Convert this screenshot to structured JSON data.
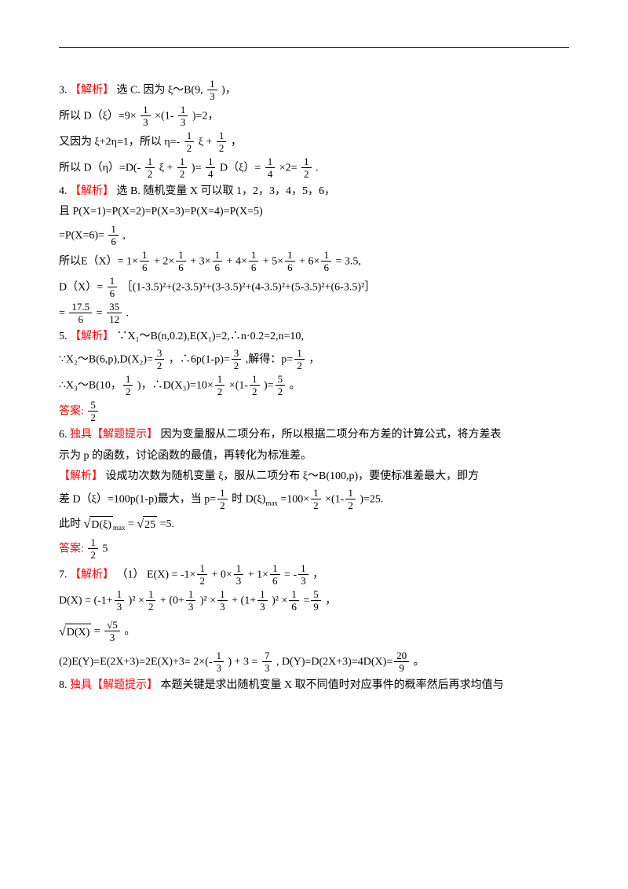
{
  "doc": {
    "text_color": "#000000",
    "accent_color": "#ff0000",
    "font_family": "SimSun",
    "font_size_pt": 10.5,
    "page_bg": "#ffffff"
  },
  "q3": {
    "prefix": "3.",
    "tag": "【解析】",
    "l1a": "选 C. 因为 ξ～B(9,",
    "l1b": ")，",
    "l2a": "所以 D（ξ）=9×",
    "l2b": "×(1-",
    "l2c": ")=2，",
    "l3a": "又因为 ξ+2η=1，所以 η=-",
    "l3b": " ξ +",
    "l3c": " ，",
    "l4a": "所以 D（η）=D(-",
    "l4b": " ξ +",
    "l4c": ")=",
    "l4d": " D（ξ）=",
    "l4e": " ×2=",
    "l4f": " ."
  },
  "q4": {
    "prefix": "4.",
    "tag": "【解析】",
    "l1": "选 B. 随机变量 X 可以取 1，2，3，4，5，6，",
    "l2": "且 P(X=1)=P(X=2)=P(X=3)=P(X=4)=P(X=5)",
    "l3a": "=P(X=6)=",
    "l3b": ",",
    "l4a": "所以E（X）= 1×",
    "l4mid": " + 2×",
    "l4mid2": " + 3×",
    "l4mid3": " + 4×",
    "l4mid4": " + 5×",
    "l4mid5": " + 6×",
    "l4end": " = 3.5,",
    "l5a": "D（X）=",
    "l5b": "［(1-3.5)²+(2-3.5)²+(3-3.5)²+(4-3.5)²+(5-3.5)²+(6-3.5)²］",
    "l6a": " = ",
    "l6b": " = ",
    "l6c": "."
  },
  "q5": {
    "prefix": "5.",
    "tag": "【解析】",
    "l1": "∵X₁～B(n,0.2),E(X₁)=2,∴n·0.2=2,n=10,",
    "l2a": "∵X₂～B(6,p),D(X₂)=",
    "l2b": "，∴6p(1-p)=",
    "l2c": ",解得：p=",
    "l2d": "，",
    "l3a": "∴X₃～B(10，",
    "l3b": ")，∴D(X₃)=10×",
    "l3c": "×(1-",
    "l3d": ")=",
    "l3e": "。",
    "ans_label": "答案: ",
    "ans_val_num": "5",
    "ans_val_den": "2"
  },
  "q6": {
    "prefix": "6.",
    "tag_hint": "独具【解题提示】",
    "hint": "因为变量服从二项分布，所以根据二项分布方差的计算公式，将方差表",
    "hint2": "示为 p 的函数，讨论函数的最值，再转化为标准差。",
    "tag_ana": "【解析】",
    "l1": "设成功次数为随机变量 ξ，服从二项分布 ξ～B(100,p)，要使标准差最大，即方",
    "l2a": "差 D（ξ）=100p(1-p)最大，当 p=",
    "l2b": "时 D(ξ)",
    "l2sub": "max",
    "l2c": "=100×",
    "l2d": "×(1-",
    "l2e": ")=25.",
    "l3a": "此时",
    "l3b": " =",
    "l3c": " =5.",
    "ans_label": "答案: ",
    "ans_a_num": "1",
    "ans_a_den": "2",
    "ans_b": "   5"
  },
  "q7": {
    "prefix": "7.",
    "tag": "【解析】",
    "part1": "（1）",
    "l1a": "E(X) = -1×",
    "l1b": " + 0×",
    "l1c": " + 1×",
    "l1d": " = -",
    "l1e": "，",
    "l2a": "D(X) = (-1+",
    "l2b": ")² ×",
    "l2c": " + (0+",
    "l2d": ")² ×",
    "l2e": " + (1+",
    "l2f": ")² ×",
    "l2g": " =",
    "l2h": "，",
    "l3a": " = ",
    "l3b": "。",
    "part2a": "(2)E(Y)=E(2X+3)=2E(X)+3= 2×(-",
    "part2b": ") + 3 = ",
    "part2c": ", D(Y)=D(2X+3)=4D(X)=",
    "part2d": "。"
  },
  "q8": {
    "prefix": "8.",
    "tag_hint": "独具【解题提示】",
    "hint": "本题关键是求出随机变量 X 取不同值时对应事件的概率然后再求均值与"
  },
  "fracs": {
    "one_third": {
      "n": "1",
      "d": "3"
    },
    "one_half": {
      "n": "1",
      "d": "2"
    },
    "one_quarter": {
      "n": "1",
      "d": "4"
    },
    "one_sixth": {
      "n": "1",
      "d": "6"
    },
    "three_half": {
      "n": "3",
      "d": "2"
    },
    "five_half": {
      "n": "5",
      "d": "2"
    },
    "five_ninth": {
      "n": "5",
      "d": "9"
    },
    "seven_third": {
      "n": "7",
      "d": "3"
    },
    "twenty_ninth": {
      "n": "20",
      "d": "9"
    },
    "seventeenpt5_6": {
      "n": "17.5",
      "d": "6"
    },
    "thirtyfive_12": {
      "n": "35",
      "d": "12"
    },
    "sqrt5_3": {
      "n": "√5",
      "d": "3"
    }
  }
}
